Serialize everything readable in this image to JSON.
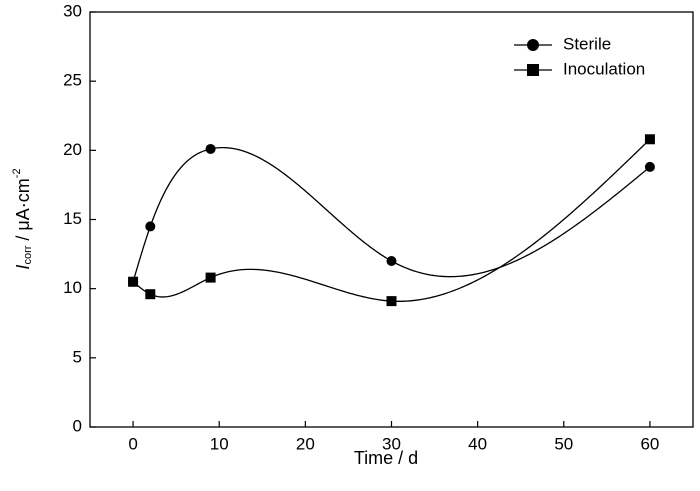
{
  "chart_data": {
    "type": "line",
    "xlabel": "Time / d",
    "ylabel": {
      "italic": "I",
      "subscript": "corr",
      "unit": " / μA·cm",
      "superscript": "-2"
    },
    "xlim": [
      -5,
      65
    ],
    "ylim": [
      0,
      30
    ],
    "x_ticks": [
      0,
      10,
      20,
      30,
      40,
      50,
      60
    ],
    "y_ticks": [
      0,
      5,
      10,
      15,
      20,
      25,
      30
    ],
    "legend_position": "top-right",
    "series": [
      {
        "name": "Sterile",
        "marker": "circle",
        "color": "#000000",
        "x": [
          0,
          2,
          9,
          30,
          60
        ],
        "y": [
          10.5,
          14.5,
          20.1,
          12.0,
          18.8
        ]
      },
      {
        "name": "Inoculation",
        "marker": "square",
        "color": "#000000",
        "x": [
          0,
          2,
          9,
          30,
          60
        ],
        "y": [
          10.5,
          9.6,
          10.8,
          9.1,
          20.8
        ]
      }
    ]
  }
}
